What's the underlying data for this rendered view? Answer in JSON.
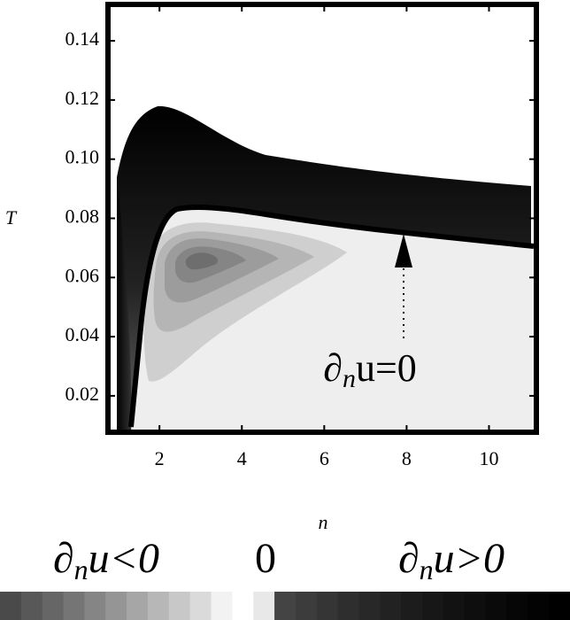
{
  "chart_data": {
    "type": "contour",
    "xlabel": "n",
    "ylabel": "T",
    "xlim": [
      0.75,
      11.15
    ],
    "ylim": [
      0.0077,
      0.1523
    ],
    "xticks": [
      2,
      4,
      6,
      8,
      10
    ],
    "yticks": [
      0.02,
      0.04,
      0.06,
      {
        "value": 0.08,
        "label": "0.08"
      },
      {
        "value": 0.1,
        "label": "0.10"
      },
      0.12,
      0.14
    ],
    "annotation": {
      "base": "∂",
      "sub": "n",
      "rest": "u=0"
    },
    "colorbar_labels": [
      {
        "base": "∂",
        "sub": "n",
        "rest": "u<0"
      },
      {
        "base": "0"
      },
      {
        "base": "∂",
        "sub": "n",
        "rest": "u>0"
      }
    ],
    "colorbar_colors": [
      "#4a4a4a",
      "#585858",
      "#666666",
      "#757575",
      "#858585",
      "#959595",
      "#a6a6a6",
      "#b7b7b7",
      "#c8c8c8",
      "#dadada",
      "#f2f2f2",
      "#ffffff",
      "#e8e8e8",
      "#444444",
      "#3c3c3c",
      "#353535",
      "#2e2e2e",
      "#282828",
      "#222222",
      "#1c1c1c",
      "#171717",
      "#121212",
      "#0e0e0e",
      "#0a0a0a",
      "#060606",
      "#030303",
      "#000000"
    ]
  }
}
